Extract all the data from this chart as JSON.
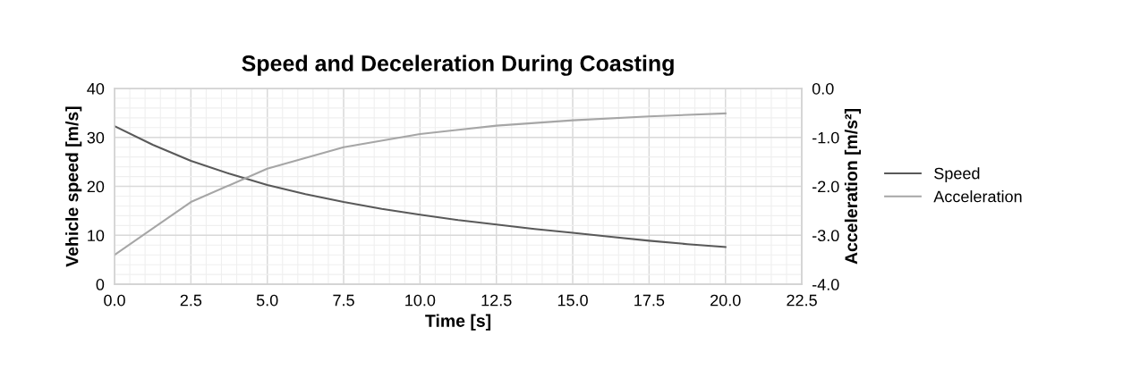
{
  "chart_data": {
    "type": "line",
    "title": "Speed and Deceleration During Coasting",
    "xlabel": "Time [s]",
    "ylabel": "Vehicle speed [m/s]",
    "y2label": "Acceleration [m/s²]",
    "series": [
      {
        "name": "Speed",
        "color": "#595959",
        "x": [
          0,
          1.25,
          2.5,
          3.75,
          5,
          6.25,
          7.5,
          8.75,
          10,
          11.25,
          12.5,
          13.75,
          15,
          16.25,
          17.5,
          18.75,
          20
        ],
        "values": [
          32.3,
          28.5,
          25.2,
          22.6,
          20.3,
          18.4,
          16.8,
          15.4,
          14.2,
          13.1,
          12.2,
          11.3,
          10.5,
          9.7,
          8.9,
          8.2,
          7.6
        ]
      },
      {
        "name": "Acceleration",
        "color": "#a6a6a6",
        "axis": "y2",
        "x": [
          0,
          2.5,
          5,
          7.5,
          10,
          12.5,
          15,
          17.5,
          20
        ],
        "values": [
          -3.4,
          -2.32,
          -1.64,
          -1.2,
          -0.93,
          -0.76,
          -0.65,
          -0.57,
          -0.51
        ]
      }
    ],
    "xlim": [
      0,
      22.5
    ],
    "xticks": [
      {
        "value": 0,
        "label": "0.0"
      },
      {
        "value": 2.5,
        "label": "2.5"
      },
      {
        "value": 5,
        "label": "5.0"
      },
      {
        "value": 7.5,
        "label": "7.5"
      },
      {
        "value": 10,
        "label": "10.0"
      },
      {
        "value": 12.5,
        "label": "12.5"
      },
      {
        "value": 15,
        "label": "15.0"
      },
      {
        "value": 17.5,
        "label": "17.5"
      },
      {
        "value": 20,
        "label": "20.0"
      },
      {
        "value": 22.5,
        "label": "22.5"
      }
    ],
    "ylim": [
      0,
      40
    ],
    "yticks": [
      0,
      10,
      20,
      30,
      40
    ],
    "y2lim": [
      -4,
      0
    ],
    "y2ticks": [
      {
        "value": -4,
        "label": "-4.0"
      },
      {
        "value": -3,
        "label": "-3.0"
      },
      {
        "value": -2,
        "label": "-2.0"
      },
      {
        "value": -1,
        "label": "-1.0"
      },
      {
        "value": 0,
        "label": "0.0"
      }
    ],
    "grid": true,
    "legend": "right",
    "marker": "none",
    "line_style": "solid"
  }
}
